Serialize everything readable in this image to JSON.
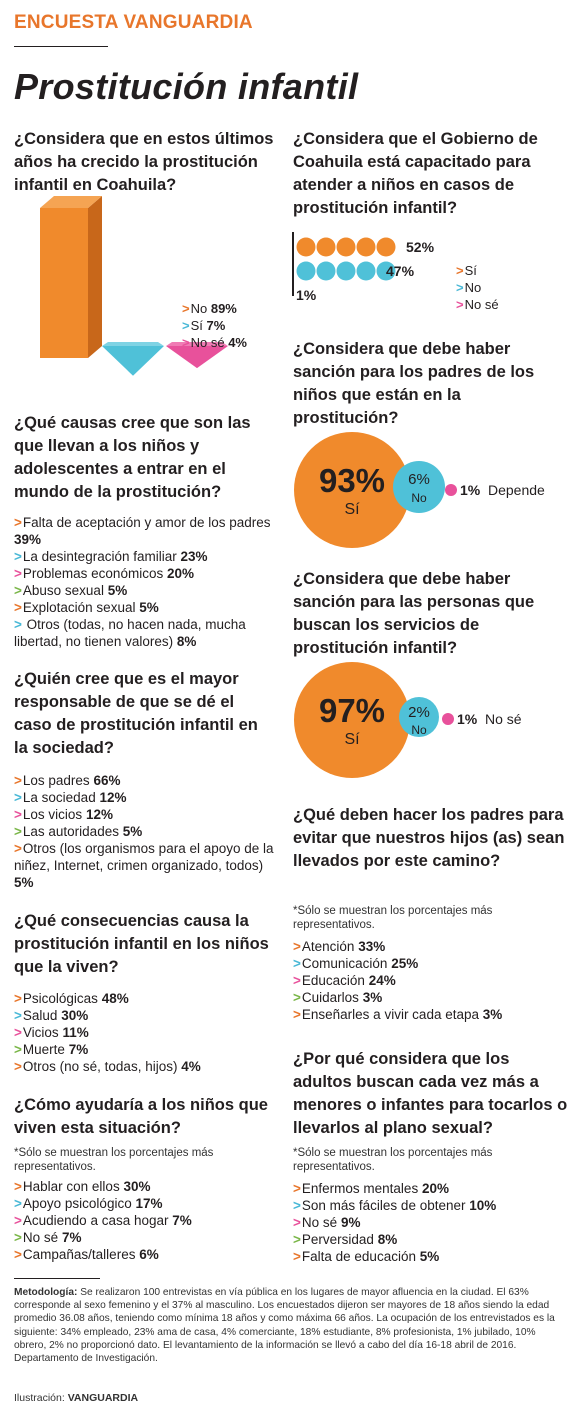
{
  "header": {
    "kicker": "ENCUESTA VANGUARDIA",
    "title": "Prostitución infantil"
  },
  "colors": {
    "orange": "#f08a2c",
    "blue": "#4fc1d8",
    "pink": "#e8519b",
    "green": "#7ab648",
    "arrow_cycle": [
      "#e8762b",
      "#49b8d6",
      "#e8519b",
      "#7ab648"
    ]
  },
  "sections": {
    "q1": {
      "question": "¿Considera que en estos últimos años ha crecido la prostitución infantil en Coahuila?",
      "legend": [
        {
          "arrow": ">",
          "label": "No",
          "value": "89%"
        },
        {
          "arrow": ">",
          "label": "Sí",
          "value": "7%"
        },
        {
          "arrow": ">",
          "label": "No sé",
          "value": "4%"
        }
      ]
    },
    "q2": {
      "question": "¿Qué causas cree que son las que llevan a los niños y adolescentes a entrar en el mundo de la prostitución?",
      "items": [
        {
          "arrow": ">",
          "label": "Falta de aceptación y amor de los padres",
          "value": "39%"
        },
        {
          "arrow": ">",
          "label": "La desintegración familiar",
          "value": "23%"
        },
        {
          "arrow": ">",
          "label": "Problemas económicos",
          "value": "20%"
        },
        {
          "arrow": ">",
          "label": "Abuso sexual",
          "value": "5%"
        },
        {
          "arrow": ">",
          "label": "Explotación sexual ",
          "value": "5%"
        },
        {
          "arrow": ">",
          "label": "  Otros (todas, no hacen nada, mucha libertad, no tienen valores)",
          "value": "8%"
        }
      ]
    },
    "q3": {
      "question": "¿Quién cree que es el mayor responsable de que se dé el caso de prostitución infantil en la sociedad?",
      "items": [
        {
          "arrow": ">",
          "label": "Los padres",
          "value": "66%"
        },
        {
          "arrow": ">",
          "label": "La sociedad",
          "value": "12%"
        },
        {
          "arrow": ">",
          "label": "Los vicios",
          "value": "12%"
        },
        {
          "arrow": ">",
          "label": "Las autoridades",
          "value": "5%"
        },
        {
          "arrow": ">",
          "label": "Otros (los organismos para el apoyo de la niñez, Internet, crimen organizado, todos)",
          "value": "5%"
        }
      ]
    },
    "q4": {
      "question": "¿Qué consecuencias causa la prostitución infantil en los niños que la viven?",
      "items": [
        {
          "arrow": ">",
          "label": "Psicológicas",
          "value": "48%"
        },
        {
          "arrow": ">",
          "label": "Salud",
          "value": "30%"
        },
        {
          "arrow": ">",
          "label": "Vicios",
          "value": "11%"
        },
        {
          "arrow": ">",
          "label": "Muerte",
          "value": "7%"
        },
        {
          "arrow": ">",
          "label": "Otros (no sé, todas, hijos)",
          "value": "4%"
        }
      ]
    },
    "q5": {
      "question": "¿Cómo ayudaría a los niños que viven esta situación?",
      "note": "*Sólo se muestran los porcentajes más representativos.",
      "items": [
        {
          "arrow": ">",
          "label": "Hablar con ellos",
          "value": "30%"
        },
        {
          "arrow": ">",
          "label": "Apoyo psicológico",
          "value": "17%"
        },
        {
          "arrow": ">",
          "label": "Acudiendo a casa hogar",
          "value": "7%"
        },
        {
          "arrow": ">",
          "label": "No sé",
          "value": "7%"
        },
        {
          "arrow": ">",
          "label": "Campañas/talleres",
          "value": "6%"
        }
      ]
    },
    "q6": {
      "question": "¿Considera que el Gobierno de Coahuila está capacitado para atender a niños en casos de prostitución infantil?",
      "row_values": [
        "52%",
        "47%",
        "1%"
      ],
      "legend": [
        {
          "arrow": ">",
          "label": "Sí"
        },
        {
          "arrow": ">",
          "label": "No"
        },
        {
          "arrow": ">",
          "label": "No sé"
        }
      ]
    },
    "q7": {
      "question": "¿Considera que debe haber sanción para los padres de los niños que están en la prostitución?",
      "big_value": "93%",
      "big_label": "Sí",
      "mid_value": "6%",
      "mid_label": "No",
      "small_value": "1%",
      "small_label": "Depende"
    },
    "q8": {
      "question": "¿Considera que debe haber sanción para las personas que buscan los servicios de prostitución infantil?",
      "big_value": "97%",
      "big_label": "Sí",
      "mid_value": "2%",
      "mid_label": "No",
      "small_value": "1%",
      "small_label": "No sé"
    },
    "q9": {
      "question": "¿Qué deben hacer los padres para evitar que nuestros hijos (as) sean llevados por este camino?",
      "note": "*Sólo se muestran los porcentajes más representativos.",
      "items": [
        {
          "arrow": ">",
          "label": "Atención",
          "value": "33%"
        },
        {
          "arrow": ">",
          "label": "Comunicación",
          "value": "25%"
        },
        {
          "arrow": ">",
          "label": "Educación",
          "value": "24%"
        },
        {
          "arrow": ">",
          "label": "Cuidarlos",
          "value": "3%"
        },
        {
          "arrow": ">",
          "label": "Enseñarles a vivir cada etapa",
          "value": "3%"
        }
      ]
    },
    "q10": {
      "question": "¿Por qué considera que los adultos buscan cada vez más  a menores o infantes para tocarlos o llevarlos al plano sexual?",
      "note": "*Sólo se muestran los porcentajes más representativos.",
      "items": [
        {
          "arrow": ">",
          "label": "Enfermos mentales",
          "value": "20%"
        },
        {
          "arrow": ">",
          "label": "Son más fáciles de obtener",
          "value": "10%"
        },
        {
          "arrow": ">",
          "label": "No sé",
          "value": "9%"
        },
        {
          "arrow": ">",
          "label": "Perversidad",
          "value": "8%"
        },
        {
          "arrow": ">",
          "label": "Falta de educación",
          "value": "5%"
        }
      ]
    }
  },
  "methodology": {
    "label": "Metodología:",
    "text": "Se realizaron 100 entrevistas en vía pública en los lugares de mayor afluencia en la ciudad. El 63% corresponde al sexo femenino y el 37% al masculino. Los encuestados dijeron ser mayores de 18 años siendo la edad promedio 36.08 años, teniendo como mínima 18 años y como máxima 66 años. La ocupación de los entrevistados es la siguiente: 34% empleado, 23% ama de casa, 4% comerciante, 18% estudiante, 8% profesionista, 1% jubilado, 10% obrero, 2% no proporcionó dato. El levantamiento de la información se llevó a cabo del día 16-18 abril de 2016. Departamento de Investigación."
  },
  "credit": {
    "label": "Ilustración:",
    "value": "VANGUARDIA"
  },
  "chart_data": [
    {
      "type": "bar",
      "title": "¿Considera que en estos últimos años ha crecido la prostitución infantil en Coahuila?",
      "categories": [
        "No",
        "Sí",
        "No sé"
      ],
      "values": [
        89,
        7,
        4
      ],
      "ylim": [
        0,
        89
      ]
    },
    {
      "type": "bar",
      "title": "¿Considera que el Gobierno de Coahuila está capacitado para atender a niños en casos de prostitución infantil?",
      "categories": [
        "Sí",
        "No",
        "No sé"
      ],
      "values": [
        52,
        47,
        1
      ]
    },
    {
      "type": "pie",
      "title": "¿Considera que debe haber sanción para los padres de los niños que están en la prostitución?",
      "categories": [
        "Sí",
        "No",
        "Depende"
      ],
      "values": [
        93,
        6,
        1
      ]
    },
    {
      "type": "pie",
      "title": "¿Considera que debe haber sanción para las personas que buscan los servicios de prostitución infantil?",
      "categories": [
        "Sí",
        "No",
        "No sé"
      ],
      "values": [
        97,
        2,
        1
      ]
    }
  ]
}
